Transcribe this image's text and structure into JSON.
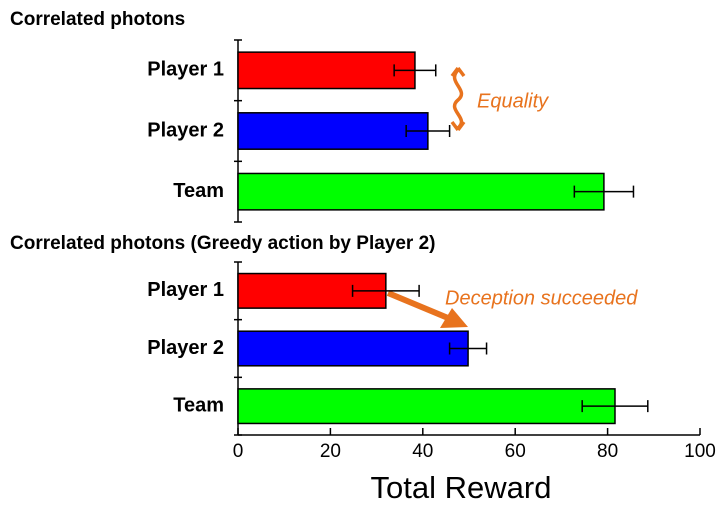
{
  "chart_data": [
    {
      "type": "barh",
      "title": "Correlated photons",
      "categories": [
        "Player 1",
        "Player 2",
        "Team"
      ],
      "values": [
        38.3,
        41.1,
        79.2
      ],
      "errors": [
        4.5,
        4.7,
        6.4
      ],
      "colors": [
        "#ff0000",
        "#0000ff",
        "#00ff00"
      ],
      "xlim": [
        0,
        100
      ],
      "annotation": "Equality"
    },
    {
      "type": "barh",
      "title": "Correlated photons (Greedy action by Player 2)",
      "categories": [
        "Player 1",
        "Player 2",
        "Team"
      ],
      "values": [
        32.0,
        49.8,
        81.6
      ],
      "errors": [
        7.2,
        4.0,
        7.1
      ],
      "colors": [
        "#ff0000",
        "#0000ff",
        "#00ff00"
      ],
      "xlim": [
        0,
        100
      ],
      "xticks": [
        0,
        20,
        40,
        60,
        80,
        100
      ],
      "xlabel": "Total Reward",
      "annotation": "Deception succeeded"
    }
  ]
}
